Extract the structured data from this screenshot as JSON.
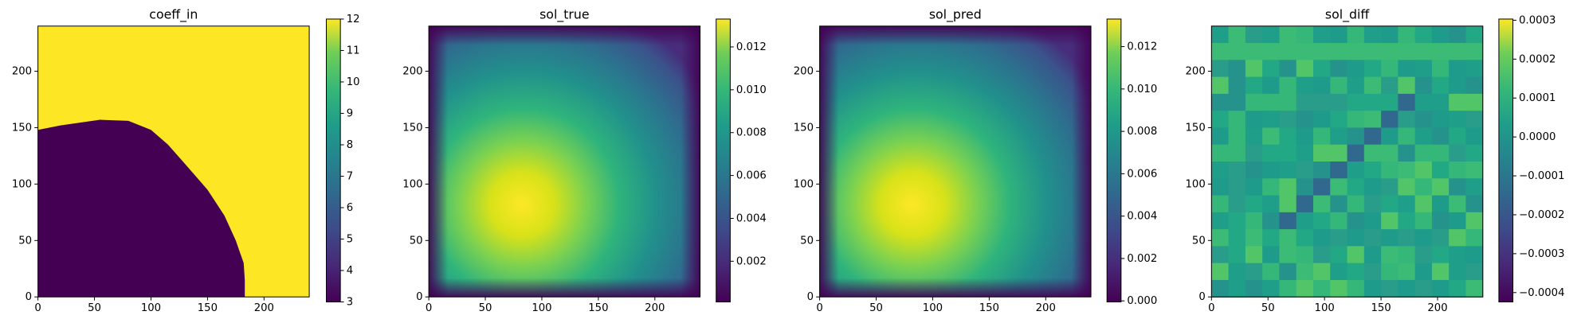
{
  "chart_data": [
    {
      "type": "heatmap",
      "title": "coeff_in",
      "xlim": [
        0,
        240
      ],
      "ylim": [
        0,
        240
      ],
      "xticks": [
        0,
        50,
        100,
        150,
        200
      ],
      "yticks": [
        0,
        50,
        100,
        150,
        200
      ],
      "clim": [
        3,
        12
      ],
      "cticks": [
        3,
        4,
        5,
        6,
        7,
        8,
        9,
        10,
        11,
        12
      ]
    },
    {
      "type": "heatmap",
      "title": "sol_true",
      "xlim": [
        0,
        240
      ],
      "ylim": [
        0,
        240
      ],
      "xticks": [
        0,
        50,
        100,
        150,
        200
      ],
      "yticks": [
        0,
        50,
        100,
        150,
        200
      ],
      "clim": [
        0.0001,
        0.0133
      ],
      "cticks": [
        {
          "value": 0.002,
          "label": "0.002"
        },
        {
          "value": 0.004,
          "label": "0.004"
        },
        {
          "value": 0.006,
          "label": "0.006"
        },
        {
          "value": 0.008,
          "label": "0.008"
        },
        {
          "value": 0.01,
          "label": "0.010"
        },
        {
          "value": 0.012,
          "label": "0.012"
        }
      ]
    },
    {
      "type": "heatmap",
      "title": "sol_pred",
      "xlim": [
        0,
        240
      ],
      "ylim": [
        0,
        240
      ],
      "xticks": [
        0,
        50,
        100,
        150,
        200
      ],
      "yticks": [
        0,
        50,
        100,
        150,
        200
      ],
      "clim": [
        -5e-05,
        0.0133
      ],
      "cticks": [
        {
          "value": 0,
          "label": "0.000"
        },
        {
          "value": 0.002,
          "label": "0.002"
        },
        {
          "value": 0.004,
          "label": "0.004"
        },
        {
          "value": 0.006,
          "label": "0.006"
        },
        {
          "value": 0.008,
          "label": "0.008"
        },
        {
          "value": 0.01,
          "label": "0.010"
        },
        {
          "value": 0.012,
          "label": "0.012"
        }
      ]
    },
    {
      "type": "heatmap",
      "title": "sol_diff",
      "xlim": [
        0,
        240
      ],
      "ylim": [
        0,
        240
      ],
      "xticks": [
        0,
        50,
        100,
        150,
        200
      ],
      "yticks": [
        0,
        50,
        100,
        150,
        200
      ],
      "clim": [
        -0.000424,
        0.000303
      ],
      "cticks": [
        {
          "value": -0.0004,
          "label": "−0.0004"
        },
        {
          "value": -0.0003,
          "label": "−0.0003"
        },
        {
          "value": -0.0002,
          "label": "−0.0002"
        },
        {
          "value": -0.0001,
          "label": "−0.0001"
        },
        {
          "value": 0,
          "label": "0.0000"
        },
        {
          "value": 0.0001,
          "label": "0.0001"
        },
        {
          "value": 0.0002,
          "label": "0.0002"
        },
        {
          "value": 0.0003,
          "label": "0.0003"
        }
      ]
    }
  ]
}
